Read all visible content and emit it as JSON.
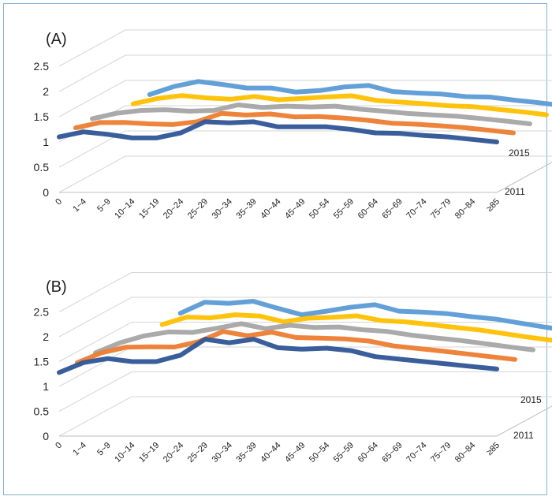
{
  "colors": {
    "2011": "#2f5597",
    "2012": "#ed7d31",
    "2013": "#a5a5a5",
    "2014": "#ffc000",
    "2015": "#5b9bd5"
  },
  "chart_data": [
    {
      "type": "line",
      "panel_label": "(A)",
      "title": "",
      "categories": [
        "0",
        "1~4",
        "5~9",
        "10~14",
        "15~19",
        "20~24",
        "25~29",
        "30~34",
        "35~39",
        "40~44",
        "45~49",
        "50~54",
        "55~59",
        "60~64",
        "65~69",
        "70~74",
        "75~79",
        "80~84",
        "≥85"
      ],
      "yticks": [
        "0",
        "0.5",
        "1",
        "1.5",
        "2",
        "2.5"
      ],
      "ylim": [
        0,
        2.5
      ],
      "z_labels": [
        "2015",
        "2011"
      ],
      "grid": true,
      "series": [
        {
          "name": "2015",
          "values": [
            null,
            1.22,
            1.38,
            1.48,
            1.42,
            1.35,
            1.35,
            1.27,
            1.3,
            1.37,
            1.4,
            1.28,
            1.25,
            1.23,
            1.18,
            1.17,
            1.11,
            1.06,
            1.0
          ]
        },
        {
          "name": "2011",
          "values": [
            1.1,
            1.2,
            1.15,
            1.08,
            1.08,
            1.18,
            1.4,
            1.38,
            1.4,
            1.3,
            1.3,
            1.3,
            1.25,
            1.18,
            1.17,
            1.13,
            1.1,
            1.05,
            1.0
          ]
        }
      ]
    },
    {
      "type": "line",
      "panel_label": "(B)",
      "title": "",
      "categories": [
        "0",
        "1~4",
        "5~9",
        "10~14",
        "15~19",
        "20~24",
        "25~29",
        "30~34",
        "35~39",
        "40~44",
        "45~49",
        "50~54",
        "55~59",
        "60~64",
        "65~69",
        "70~74",
        "75~79",
        "80~84",
        "≥85"
      ],
      "yticks": [
        "0",
        "0.5",
        "1",
        "1.5",
        "2",
        "2.5"
      ],
      "ylim": [
        0,
        2.5
      ],
      "z_labels": [
        "2015",
        "2011"
      ],
      "grid": true,
      "series": [
        {
          "name": "2015",
          "values": [
            null,
            null,
            1.68,
            1.9,
            1.88,
            1.92,
            1.78,
            1.65,
            1.72,
            1.8,
            1.85,
            1.72,
            1.7,
            1.67,
            1.61,
            1.56,
            1.48,
            1.4,
            1.33
          ]
        },
        {
          "name": "2011",
          "values": [
            1.28,
            1.48,
            1.56,
            1.5,
            1.5,
            1.63,
            1.95,
            1.88,
            1.95,
            1.78,
            1.75,
            1.77,
            1.72,
            1.6,
            1.55,
            1.5,
            1.45,
            1.4,
            1.35
          ]
        }
      ]
    }
  ]
}
